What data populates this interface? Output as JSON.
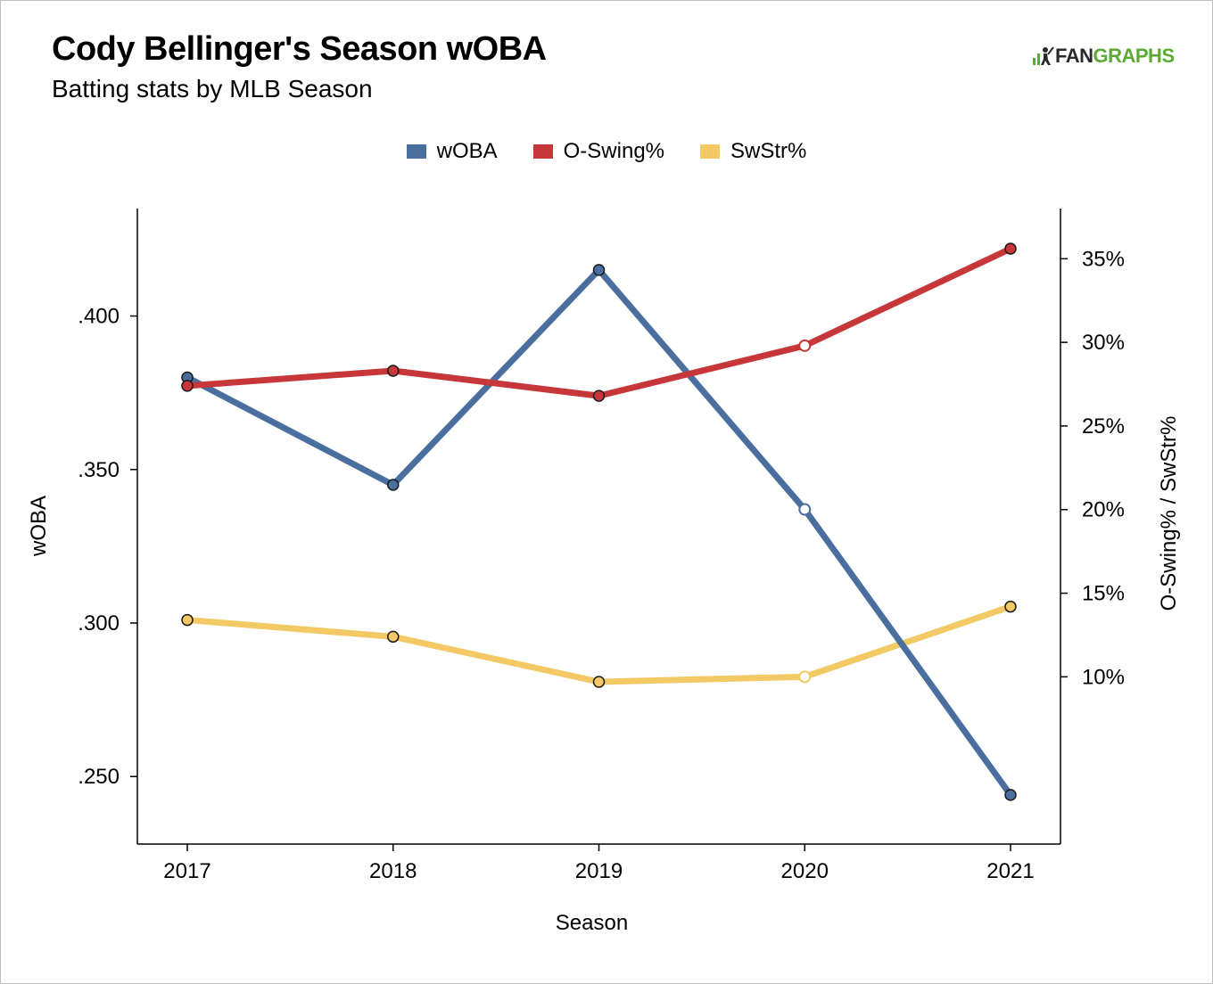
{
  "header": {
    "title": "Cody Bellinger's Season wOBA",
    "subtitle": "Batting stats by MLB Season"
  },
  "logo": {
    "text_fan": "FAN",
    "text_graphs": "GRAPHS"
  },
  "colors": {
    "woba": "#4a6e9e",
    "oswing": "#c7373a",
    "swstr": "#f2c964",
    "axis": "#000000"
  },
  "chart_data": {
    "type": "line",
    "title": "Cody Bellinger's Season wOBA",
    "subtitle": "Batting stats by MLB Season",
    "xlabel": "Season",
    "ylabel": "wOBA",
    "y2label": "O-Swing% / SwStr%",
    "categories": [
      "2017",
      "2018",
      "2019",
      "2020",
      "2021"
    ],
    "ylim": [
      0.228,
      0.435
    ],
    "y2lim": [
      0.0,
      0.38
    ],
    "yticks": [
      ".250",
      ".300",
      ".350",
      ".400"
    ],
    "yticks_values": [
      0.25,
      0.3,
      0.35,
      0.4
    ],
    "y2ticks": [
      "10%",
      "15%",
      "20%",
      "25%",
      "30%",
      "35%"
    ],
    "y2ticks_values": [
      0.1,
      0.15,
      0.2,
      0.25,
      0.3,
      0.35
    ],
    "legend_position": "top-center",
    "grid": false,
    "series": [
      {
        "name": "wOBA",
        "axis": "left",
        "values": [
          0.38,
          0.345,
          0.415,
          0.337,
          0.244
        ],
        "hollow": [
          false,
          false,
          false,
          true,
          false
        ]
      },
      {
        "name": "O-Swing%",
        "axis": "right",
        "values": [
          0.274,
          0.283,
          0.268,
          0.298,
          0.356
        ],
        "hollow": [
          false,
          false,
          false,
          true,
          false
        ]
      },
      {
        "name": "SwStr%",
        "axis": "right",
        "values": [
          0.134,
          0.124,
          0.097,
          0.1,
          0.142
        ],
        "hollow": [
          false,
          false,
          false,
          true,
          false
        ]
      }
    ]
  }
}
